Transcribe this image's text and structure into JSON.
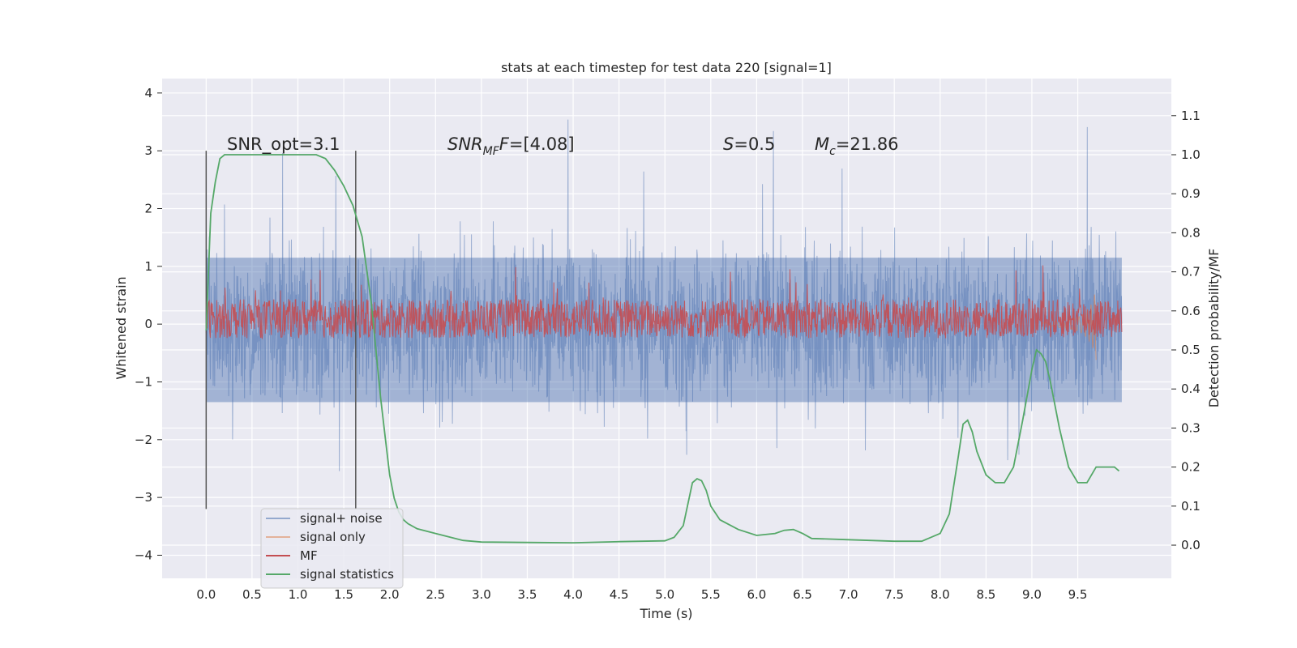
{
  "chart_data": {
    "type": "line",
    "title": "stats at each timestep for test data 220 [signal=1]",
    "xlabel": "Time (s)",
    "ylabel": "Whitened strain",
    "y2label": "Detection probability/MF",
    "xlim": [
      -0.48,
      10.52
    ],
    "ylim": [
      -4.4,
      4.25
    ],
    "y2lim": [
      -0.085,
      1.195
    ],
    "x_ticks": [
      "0.0",
      "0.5",
      "1.0",
      "1.5",
      "2.0",
      "2.5",
      "3.0",
      "3.5",
      "4.0",
      "4.5",
      "5.0",
      "5.5",
      "6.0",
      "6.5",
      "7.0",
      "7.5",
      "8.0",
      "8.5",
      "9.0",
      "9.5"
    ],
    "y_ticks": [
      "4",
      "3",
      "2",
      "1",
      "0",
      "−1",
      "−2",
      "−3",
      "−4"
    ],
    "y2_ticks": [
      "1.1",
      "1.0",
      "0.9",
      "0.8",
      "0.7",
      "0.6",
      "0.5",
      "0.4",
      "0.3",
      "0.2",
      "0.1",
      "0.0"
    ],
    "grid": true,
    "legend_position": "lower-left",
    "legend": [
      "signal+ noise",
      "signal only",
      "MF",
      "signal statistics"
    ],
    "colors": {
      "signal_noise": "#4c72b0",
      "signal_only": "#dd8452",
      "mf": "#c44e52",
      "statistics": "#55a868",
      "background": "#eaeaf2",
      "vline": "#555555"
    },
    "vertical_lines_x": [
      0.0,
      1.63
    ],
    "annotations": {
      "snr_opt": "SNR_opt=3.1",
      "snr_mf_main": "SNR",
      "snr_mf_sub": "MF",
      "snr_mf_rest": "=[4.08]",
      "s_main": "S",
      "s_rest": "=0.5",
      "mc_main": "M",
      "mc_sub": "c",
      "mc_rest": "=21.86"
    },
    "series": [
      {
        "name": "signal statistics",
        "axis": "right",
        "x": [
          0.0,
          0.05,
          0.1,
          0.15,
          0.2,
          0.3,
          0.5,
          0.8,
          1.0,
          1.2,
          1.3,
          1.4,
          1.5,
          1.6,
          1.7,
          1.8,
          1.9,
          1.95,
          2.0,
          2.05,
          2.1,
          2.15,
          2.2,
          2.3,
          2.5,
          2.8,
          3.0,
          3.5,
          4.0,
          4.5,
          5.0,
          5.1,
          5.2,
          5.3,
          5.35,
          5.4,
          5.45,
          5.5,
          5.6,
          5.8,
          6.0,
          6.2,
          6.3,
          6.4,
          6.5,
          6.6,
          7.0,
          7.5,
          7.8,
          8.0,
          8.1,
          8.2,
          8.25,
          8.3,
          8.35,
          8.4,
          8.5,
          8.6,
          8.7,
          8.8,
          8.9,
          9.0,
          9.05,
          9.1,
          9.15,
          9.2,
          9.3,
          9.4,
          9.5,
          9.6,
          9.7,
          9.8,
          9.9,
          9.95
        ],
        "y": [
          0.55,
          0.85,
          0.93,
          0.99,
          1.0,
          1.0,
          1.0,
          1.0,
          1.0,
          1.0,
          0.99,
          0.96,
          0.92,
          0.87,
          0.79,
          0.62,
          0.38,
          0.28,
          0.18,
          0.12,
          0.085,
          0.065,
          0.055,
          0.042,
          0.03,
          0.012,
          0.008,
          0.007,
          0.006,
          0.009,
          0.011,
          0.02,
          0.05,
          0.16,
          0.17,
          0.165,
          0.14,
          0.1,
          0.065,
          0.04,
          0.025,
          0.03,
          0.038,
          0.04,
          0.03,
          0.017,
          0.014,
          0.01,
          0.01,
          0.03,
          0.08,
          0.23,
          0.31,
          0.32,
          0.29,
          0.24,
          0.18,
          0.16,
          0.16,
          0.2,
          0.32,
          0.45,
          0.5,
          0.49,
          0.47,
          0.42,
          0.3,
          0.2,
          0.16,
          0.16,
          0.2,
          0.2,
          0.2,
          0.19
        ]
      },
      {
        "name": "signal only",
        "axis": "left",
        "description_x_range": [
          9.1,
          9.7
        ],
        "x": [
          9.1,
          9.2,
          9.3,
          9.4,
          9.5,
          9.55,
          9.6,
          9.65,
          9.68,
          9.7
        ],
        "amplitude": [
          0.02,
          0.04,
          0.06,
          0.08,
          0.12,
          0.16,
          0.24,
          0.35,
          0.5,
          0.62
        ]
      }
    ]
  }
}
